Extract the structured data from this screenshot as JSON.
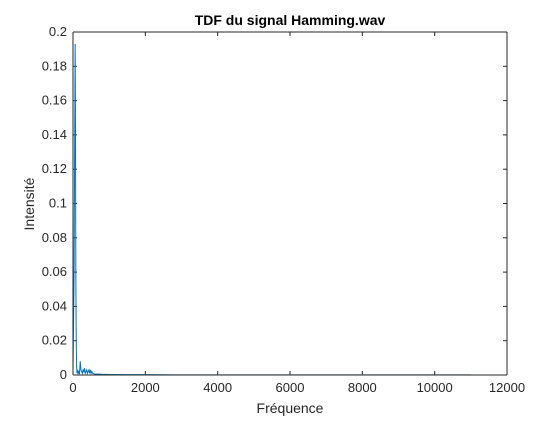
{
  "chart_data": {
    "type": "line",
    "title": "TDF du signal Hamming.wav",
    "xlabel": "Fréquence",
    "ylabel": "Intensité",
    "xlim": [
      0,
      12000
    ],
    "ylim": [
      0,
      0.2
    ],
    "xticks": [
      "0",
      "2000",
      "4000",
      "6000",
      "8000",
      "10000",
      "12000"
    ],
    "yticks": [
      "0",
      "0.02",
      "0.04",
      "0.06",
      "0.08",
      "0.1",
      "0.12",
      "0.14",
      "0.16",
      "0.18",
      "0.2"
    ],
    "grid": false,
    "series": [
      {
        "color": "#0072bd",
        "x": [
          0,
          30,
          60,
          70,
          80,
          90,
          100,
          110,
          120,
          140,
          160,
          180,
          200,
          220,
          240,
          260,
          280,
          300,
          320,
          340,
          360,
          380,
          400,
          420,
          440,
          460,
          480,
          500,
          520,
          540,
          560,
          600,
          700,
          800,
          1000,
          1500,
          2000,
          3000,
          4000,
          5000,
          6000,
          7000,
          8000,
          9000,
          10000,
          11000
        ],
        "y": [
          0.002,
          0.06,
          0.193,
          0.14,
          0.05,
          0.02,
          0.005,
          0.001,
          0.003,
          0.001,
          0.002,
          0.0005,
          0.008,
          0.003,
          0.002,
          0.001,
          0.003,
          0.002,
          0.004,
          0.001,
          0.002,
          0.003,
          0.001,
          0.002,
          0.003,
          0.001,
          0.003,
          0.001,
          0.002,
          0.001,
          0.0008,
          0.0006,
          0.0005,
          0.0004,
          0.0003,
          0.0002,
          0.0002,
          0.0001,
          0.0001,
          0.0001,
          0.0001,
          0.0001,
          0.0001,
          0.0001,
          0.0001,
          0.0001
        ]
      }
    ]
  }
}
